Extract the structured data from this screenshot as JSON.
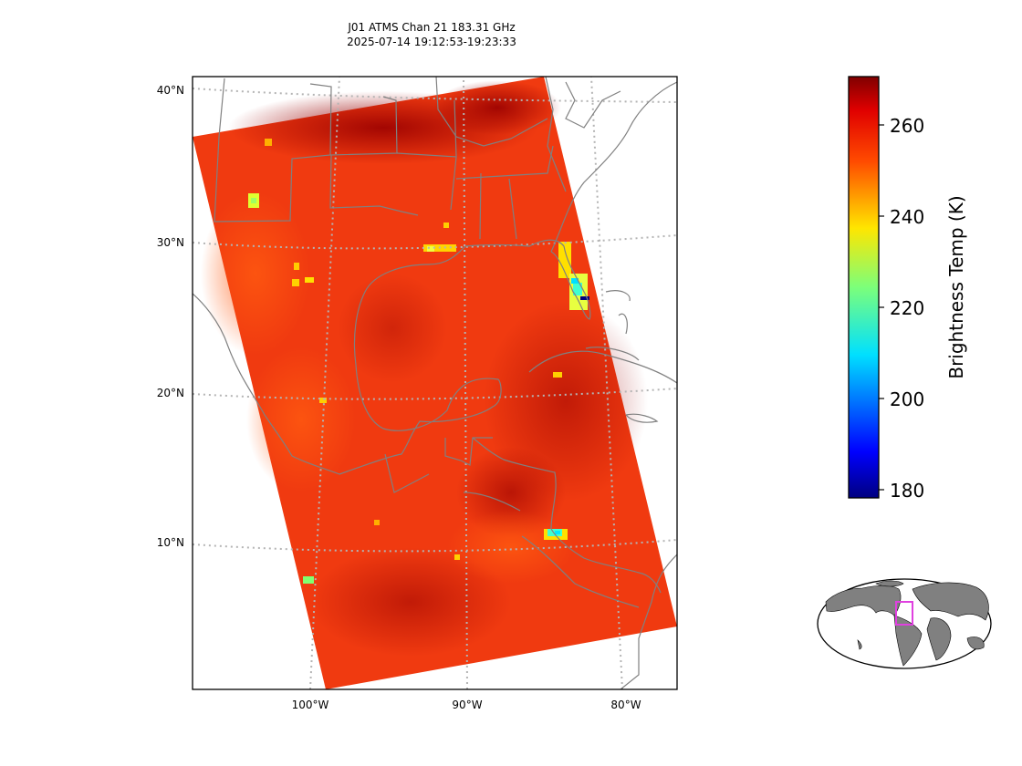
{
  "title": {
    "line1": "J01 ATMS Chan 21 183.31 GHz",
    "line2": "2025-07-14 19:12:53-19:23:33"
  },
  "map": {
    "lat_labels": [
      "40°N",
      "30°N",
      "20°N",
      "10°N"
    ],
    "lon_labels": [
      "100°W",
      "90°W",
      "80°W"
    ],
    "colormap": "jet",
    "swath_background_color": "#f03a10",
    "land_outline_color": "#808080",
    "gridline_color": "#b4b4b4"
  },
  "colorbar": {
    "label": "Brightness Temp (K)",
    "ticks": [
      "260",
      "240",
      "220",
      "200",
      "180"
    ],
    "range": [
      178,
      271
    ],
    "colormap": "jet"
  },
  "inset": {
    "description_color": "#e040e0",
    "land_color": "#808080"
  }
}
